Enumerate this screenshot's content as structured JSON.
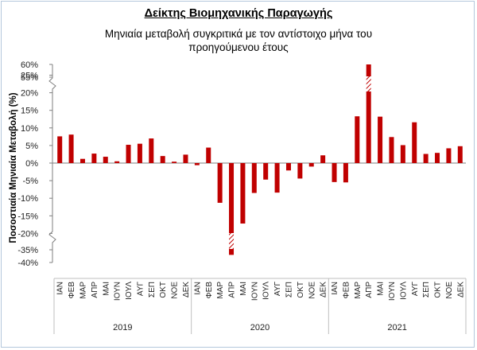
{
  "chart_data": {
    "type": "bar",
    "title": "Δείκτης Βιομηχανικής Παραγωγής",
    "subtitle_line1": "Μηνιαία μεταβολή συγκριτικά με τον αντίστοιχο μήνα του",
    "subtitle_line2": "προηγούμενου έτους",
    "ylabel": "Ποσοστιαία Μηνιαία Μεταβολή (%)",
    "xlabel": "",
    "y_ticks": [
      "60%",
      "55%",
      "25%",
      "20%",
      "15%",
      "10%",
      "5%",
      "0%",
      "-5%",
      "-10%",
      "-15%",
      "-20%",
      "-35%",
      "-40%"
    ],
    "y_tick_values": [
      60,
      55,
      25,
      20,
      15,
      10,
      5,
      0,
      -5,
      -10,
      -15,
      -20,
      -35,
      -40
    ],
    "axis_breaks": [
      "25% – 55%",
      "-20% – -35%"
    ],
    "grid": false,
    "bar_color": "#c00000",
    "break_pattern_color": "#c00000",
    "categories": [
      "ΙΑΝ",
      "ΦΕΒ",
      "ΜΑΡ",
      "ΑΠΡ",
      "ΜΑΙ",
      "ΙΟΥΝ",
      "ΙΟΥΛ",
      "ΑΥΓ",
      "ΣΕΠ",
      "ΟΚΤ",
      "ΝΟΕ",
      "ΔΕΚ",
      "ΙΑΝ",
      "ΦΕΒ",
      "ΜΑΡ",
      "ΑΠΡ",
      "ΜΑΙ",
      "ΙΟΥΝ",
      "ΙΟΥΛ",
      "ΑΥΓ",
      "ΣΕΠ",
      "ΟΚΤ",
      "ΝΟΕ",
      "ΔΕΚ",
      "ΙΑΝ",
      "ΦΕΒ",
      "ΜΑΡ",
      "ΑΠΡ",
      "ΜΑΙ",
      "ΙΟΥΝ",
      "ΙΟΥΛ",
      "ΑΥΓ",
      "ΣΕΠ",
      "ΟΚΤ",
      "ΝΟΕ",
      "ΔΕΚ"
    ],
    "years": [
      "2019",
      "2020",
      "2021"
    ],
    "series": [
      {
        "values": [
          7.6,
          8.1,
          1.2,
          2.7,
          1.8,
          0.5,
          5.2,
          5.5,
          7.0,
          2.0,
          0.4,
          2.4,
          -0.6,
          4.4,
          -11.3,
          -37.0,
          -17.2,
          -8.5,
          -4.7,
          -8.4,
          -2.1,
          -4.4,
          -1.0,
          2.2,
          -5.4,
          -5.5,
          13.3,
          60.0,
          13.2,
          7.4,
          5.1,
          11.6,
          2.6,
          2.9,
          4.2,
          4.8
        ]
      }
    ]
  }
}
